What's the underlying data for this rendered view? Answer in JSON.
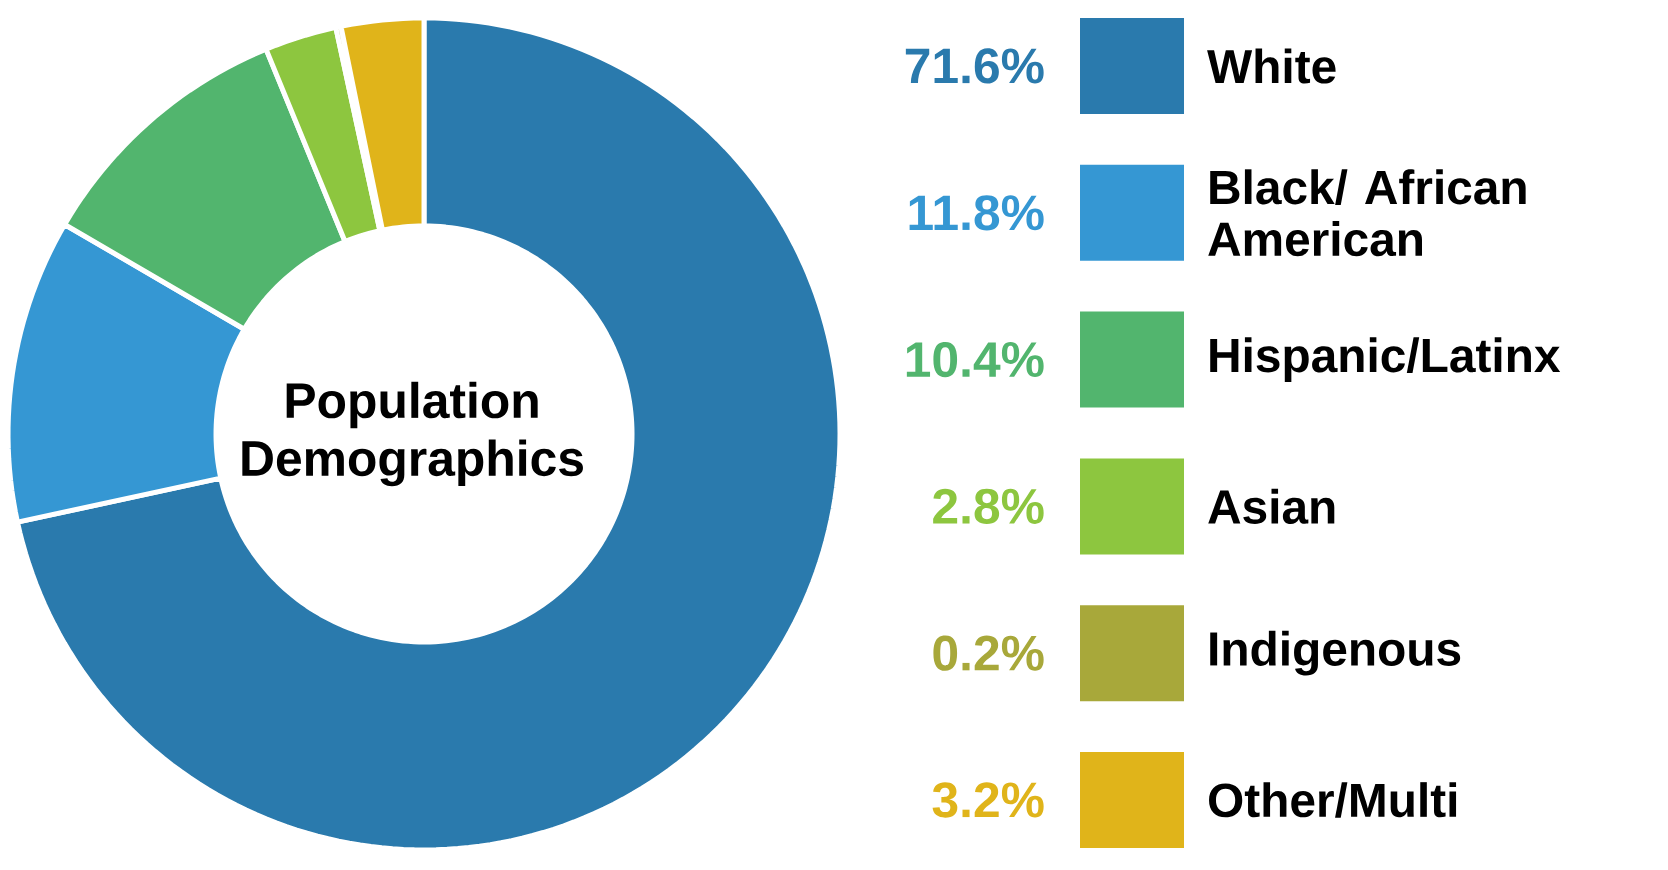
{
  "chart_data": {
    "type": "donut",
    "title": "Population Demographics",
    "categories": [
      "White",
      "Black/ African American",
      "Hispanic/Latinx",
      "Asian",
      "Indigenous",
      "Other/Multi"
    ],
    "values": [
      71.6,
      11.8,
      10.4,
      2.8,
      0.2,
      3.2
    ],
    "value_labels": [
      "71.6%",
      "11.8%",
      "10.4%",
      "2.8%",
      "0.2%",
      "3.2%"
    ],
    "colors": [
      "#2a7aad",
      "#3597d3",
      "#52b56e",
      "#8dc63f",
      "#a8a83a",
      "#e0b41a"
    ],
    "legend": "right"
  }
}
